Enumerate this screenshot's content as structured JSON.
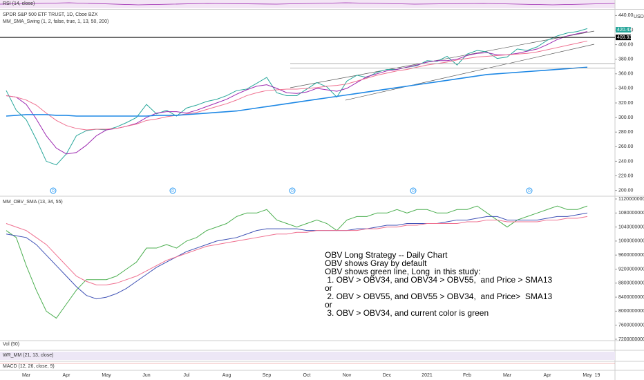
{
  "chart_data": [
    {
      "type": "line",
      "title": "SPDR S&P 500 ETF TRUST, 1D, Cboe BZX",
      "subtitle": "MM_SMA_Swing (1, 2, false, true, 1, 13, 50, 200)",
      "unit": "USD",
      "categories": [
        null,
        null,
        "Mar",
        null,
        null,
        null,
        "Apr",
        null,
        null,
        null,
        "May",
        null,
        null,
        null,
        "Jun",
        null,
        null,
        null,
        "Jul",
        null,
        null,
        null,
        "Aug",
        null,
        null,
        null,
        "Sep",
        null,
        null,
        null,
        "Oct",
        null,
        null,
        null,
        "Nov",
        null,
        null,
        null,
        "Dec",
        null,
        null,
        null,
        "2021",
        null,
        null,
        null,
        "Feb",
        null,
        null,
        null,
        "Mar",
        null,
        null,
        null,
        "Apr",
        null,
        null,
        null,
        "May",
        "19"
      ],
      "series": [
        {
          "color": "#26a69a",
          "values": [
            337,
            310,
            297,
            270,
            240,
            235,
            250,
            275,
            282,
            284,
            283,
            287,
            293,
            300,
            318,
            305,
            310,
            302,
            313,
            317,
            322,
            325,
            330,
            337,
            339,
            347,
            355,
            334,
            330,
            330,
            339,
            348,
            342,
            328,
            350,
            358,
            355,
            362,
            366,
            366,
            369,
            371,
            378,
            377,
            384,
            372,
            387,
            392,
            390,
            381,
            383,
            394,
            392,
            397,
            406,
            412,
            416,
            418,
            422,
            null
          ]
        },
        {
          "color": "#9c27b0",
          "values": [
            330,
            328,
            318,
            298,
            275,
            258,
            250,
            252,
            262,
            275,
            283,
            285,
            288,
            292,
            300,
            306,
            308,
            308,
            306,
            310,
            315,
            320,
            325,
            332,
            338,
            343,
            345,
            340,
            334,
            333,
            335,
            340,
            338,
            336,
            340,
            348,
            356,
            360,
            364,
            366,
            369,
            372,
            376,
            378,
            378,
            380,
            385,
            388,
            389,
            386,
            386,
            388,
            391,
            394,
            400,
            407,
            412,
            415,
            418,
            null
          ]
        },
        {
          "color": "#ef6f8f",
          "values": [
            330,
            328,
            324,
            317,
            306,
            296,
            289,
            285,
            283,
            284,
            284,
            285,
            288,
            291,
            296,
            298,
            301,
            303,
            305,
            307,
            311,
            315,
            319,
            324,
            330,
            334,
            337,
            338,
            339,
            339,
            340,
            341,
            343,
            344,
            346,
            350,
            354,
            358,
            361,
            364,
            366,
            369,
            372,
            374,
            376,
            379,
            381,
            383,
            384,
            385,
            386,
            387,
            388,
            390,
            393,
            396,
            399,
            402,
            405,
            null
          ]
        },
        {
          "color": "#1e88e5",
          "values": [
            302,
            303,
            304,
            304,
            304,
            303,
            303,
            302,
            302,
            302,
            302,
            302,
            302,
            302,
            302,
            303,
            303,
            303,
            304,
            305,
            306,
            307,
            308,
            309,
            311,
            313,
            315,
            317,
            319,
            321,
            323,
            325,
            327,
            329,
            331,
            333,
            335,
            337,
            339,
            341,
            343,
            345,
            347,
            349,
            351,
            353,
            355,
            357,
            359,
            360,
            361,
            362,
            363,
            364,
            365,
            366,
            367,
            368,
            369,
            null
          ]
        }
      ],
      "ylim": [
        193,
        447
      ],
      "yticks": [
        {
          "value": 200,
          "label": "200.00"
        },
        {
          "value": 220,
          "label": "220.00"
        },
        {
          "value": 240,
          "label": "240.00"
        },
        {
          "value": 260,
          "label": "260.00"
        },
        {
          "value": 280,
          "label": "280.00"
        },
        {
          "value": 300,
          "label": "300.00"
        },
        {
          "value": 320,
          "label": "320.00"
        },
        {
          "value": 340,
          "label": "340.00"
        },
        {
          "value": 360,
          "label": "360.00"
        },
        {
          "value": 380,
          "label": "380.00"
        },
        {
          "value": 400,
          "label": "400.00"
        },
        {
          "value": 420,
          "label": "420.00"
        },
        {
          "value": 440,
          "label": "440.00"
        }
      ],
      "price_tag": 420.43,
      "level_tag": 409.93,
      "hlines": [
        374,
        368
      ],
      "markers": [
        "D",
        "D",
        "D",
        "D",
        "D"
      ]
    },
    {
      "type": "line",
      "title": "MM_OBV_SMA (13, 34, 55)",
      "series": [
        {
          "color": "#4caf50",
          "values": [
            10300000000.0,
            10100000000.0,
            9300000000.0,
            8600000000.0,
            8000000000.0,
            7800000000.0,
            8200000000.0,
            8600000000.0,
            8900000000.0,
            8900000000.0,
            8900000000.0,
            9000000000.0,
            9200000000.0,
            9400000000.0,
            9800000000.0,
            9800000000.0,
            9900000000.0,
            9800000000.0,
            10000000000.0,
            10100000000.0,
            10300000000.0,
            10400000000.0,
            10500000000.0,
            10700000000.0,
            10800000000.0,
            10800000000.0,
            10900000000.0,
            10600000000.0,
            10500000000.0,
            10400000000.0,
            10500000000.0,
            10600000000.0,
            10500000000.0,
            10300000000.0,
            10600000000.0,
            10700000000.0,
            10700000000.0,
            10800000000.0,
            10800000000.0,
            10900000000.0,
            10800000000.0,
            10900000000.0,
            10900000000.0,
            10800000000.0,
            10800000000.0,
            10900000000.0,
            10900000000.0,
            11000000000.0,
            10800000000.0,
            10600000000.0,
            10400000000.0,
            10600000000.0,
            10700000000.0,
            10800000000.0,
            10900000000.0,
            11000000000.0,
            10900000000.0,
            10900000000.0,
            11000000000.0,
            null
          ]
        },
        {
          "color": "#3f51b5",
          "values": [
            10200000000.0,
            10150000000.0,
            10100000000.0,
            9900000000.0,
            9600000000.0,
            9300000000.0,
            9000000000.0,
            8700000000.0,
            8450000000.0,
            8350000000.0,
            8400000000.0,
            8500000000.0,
            8650000000.0,
            8850000000.0,
            9050000000.0,
            9250000000.0,
            9400000000.0,
            9550000000.0,
            9700000000.0,
            9800000000.0,
            9900000000.0,
            10000000000.0,
            10050000000.0,
            10100000000.0,
            10200000000.0,
            10300000000.0,
            10350000000.0,
            10350000000.0,
            10350000000.0,
            10350000000.0,
            10300000000.0,
            10300000000.0,
            10300000000.0,
            10300000000.0,
            10300000000.0,
            10350000000.0,
            10350000000.0,
            10400000000.0,
            10450000000.0,
            10450000000.0,
            10500000000.0,
            10500000000.0,
            10500000000.0,
            10500000000.0,
            10550000000.0,
            10600000000.0,
            10600000000.0,
            10650000000.0,
            10700000000.0,
            10700000000.0,
            10600000000.0,
            10600000000.0,
            10600000000.0,
            10600000000.0,
            10650000000.0,
            10700000000.0,
            10700000000.0,
            10750000000.0,
            10800000000.0,
            null
          ]
        },
        {
          "color": "#ef6f8f",
          "values": [
            10500000000.0,
            10400000000.0,
            10300000000.0,
            10100000000.0,
            9900000000.0,
            9600000000.0,
            9300000000.0,
            9000000000.0,
            8850000000.0,
            8750000000.0,
            8750000000.0,
            8800000000.0,
            8900000000.0,
            9000000000.0,
            9150000000.0,
            9300000000.0,
            9450000000.0,
            9550000000.0,
            9650000000.0,
            9750000000.0,
            9850000000.0,
            9900000000.0,
            9950000000.0,
            10000000000.0,
            10050000000.0,
            10100000000.0,
            10150000000.0,
            10200000000.0,
            10200000000.0,
            10250000000.0,
            10250000000.0,
            10300000000.0,
            10300000000.0,
            10300000000.0,
            10300000000.0,
            10300000000.0,
            10350000000.0,
            10350000000.0,
            10400000000.0,
            10400000000.0,
            10450000000.0,
            10450000000.0,
            10500000000.0,
            10500000000.0,
            10500000000.0,
            10500000000.0,
            10550000000.0,
            10550000000.0,
            10600000000.0,
            10600000000.0,
            10550000000.0,
            10550000000.0,
            10550000000.0,
            10550000000.0,
            10600000000.0,
            10600000000.0,
            10650000000.0,
            10650000000.0,
            10700000000.0,
            null
          ]
        }
      ],
      "ylim": [
        7180000000.0,
        11259000000.0
      ],
      "yticks": [
        {
          "value": 11200000000.0,
          "label": "11200000000.00"
        },
        {
          "value": 10800000000.0,
          "label": "10800000000.00"
        },
        {
          "value": 10400000000.0,
          "label": "10400000000.00"
        },
        {
          "value": 10000000000.0,
          "label": "10000000000.00"
        },
        {
          "value": 9600000000.0,
          "label": "9600000000.00"
        },
        {
          "value": 9200000000.0,
          "label": "9200000000.00"
        },
        {
          "value": 8800000000.0,
          "label": "8800000000.00"
        },
        {
          "value": 8400000000.0,
          "label": "8400000000.00"
        },
        {
          "value": 8000000000.0,
          "label": "8000000000.00"
        },
        {
          "value": 7600000000.0,
          "label": "7600000000.00"
        },
        {
          "value": 7200000000.0,
          "label": "7200000000.00"
        }
      ],
      "annotations": [
        "OBV Long Strategy -- Daily Chart",
        "OBV shows Gray by default",
        "OBV shows green line, Long  in this study:",
        " 1. OBV > OBV34, and OBV34 > OBV55,  and Price > SMA13",
        "or",
        " 2. OBV > OBV55, and OBV55 > OBV34,  and Price>  SMA13",
        "or",
        " 3. OBV > OBV34, and current color is green"
      ]
    }
  ],
  "indicators": [
    "RSI (14, close)",
    "Vol (50)",
    "WR_MM (21, 13, close)",
    "MACD (12, 26, close, 9)"
  ]
}
